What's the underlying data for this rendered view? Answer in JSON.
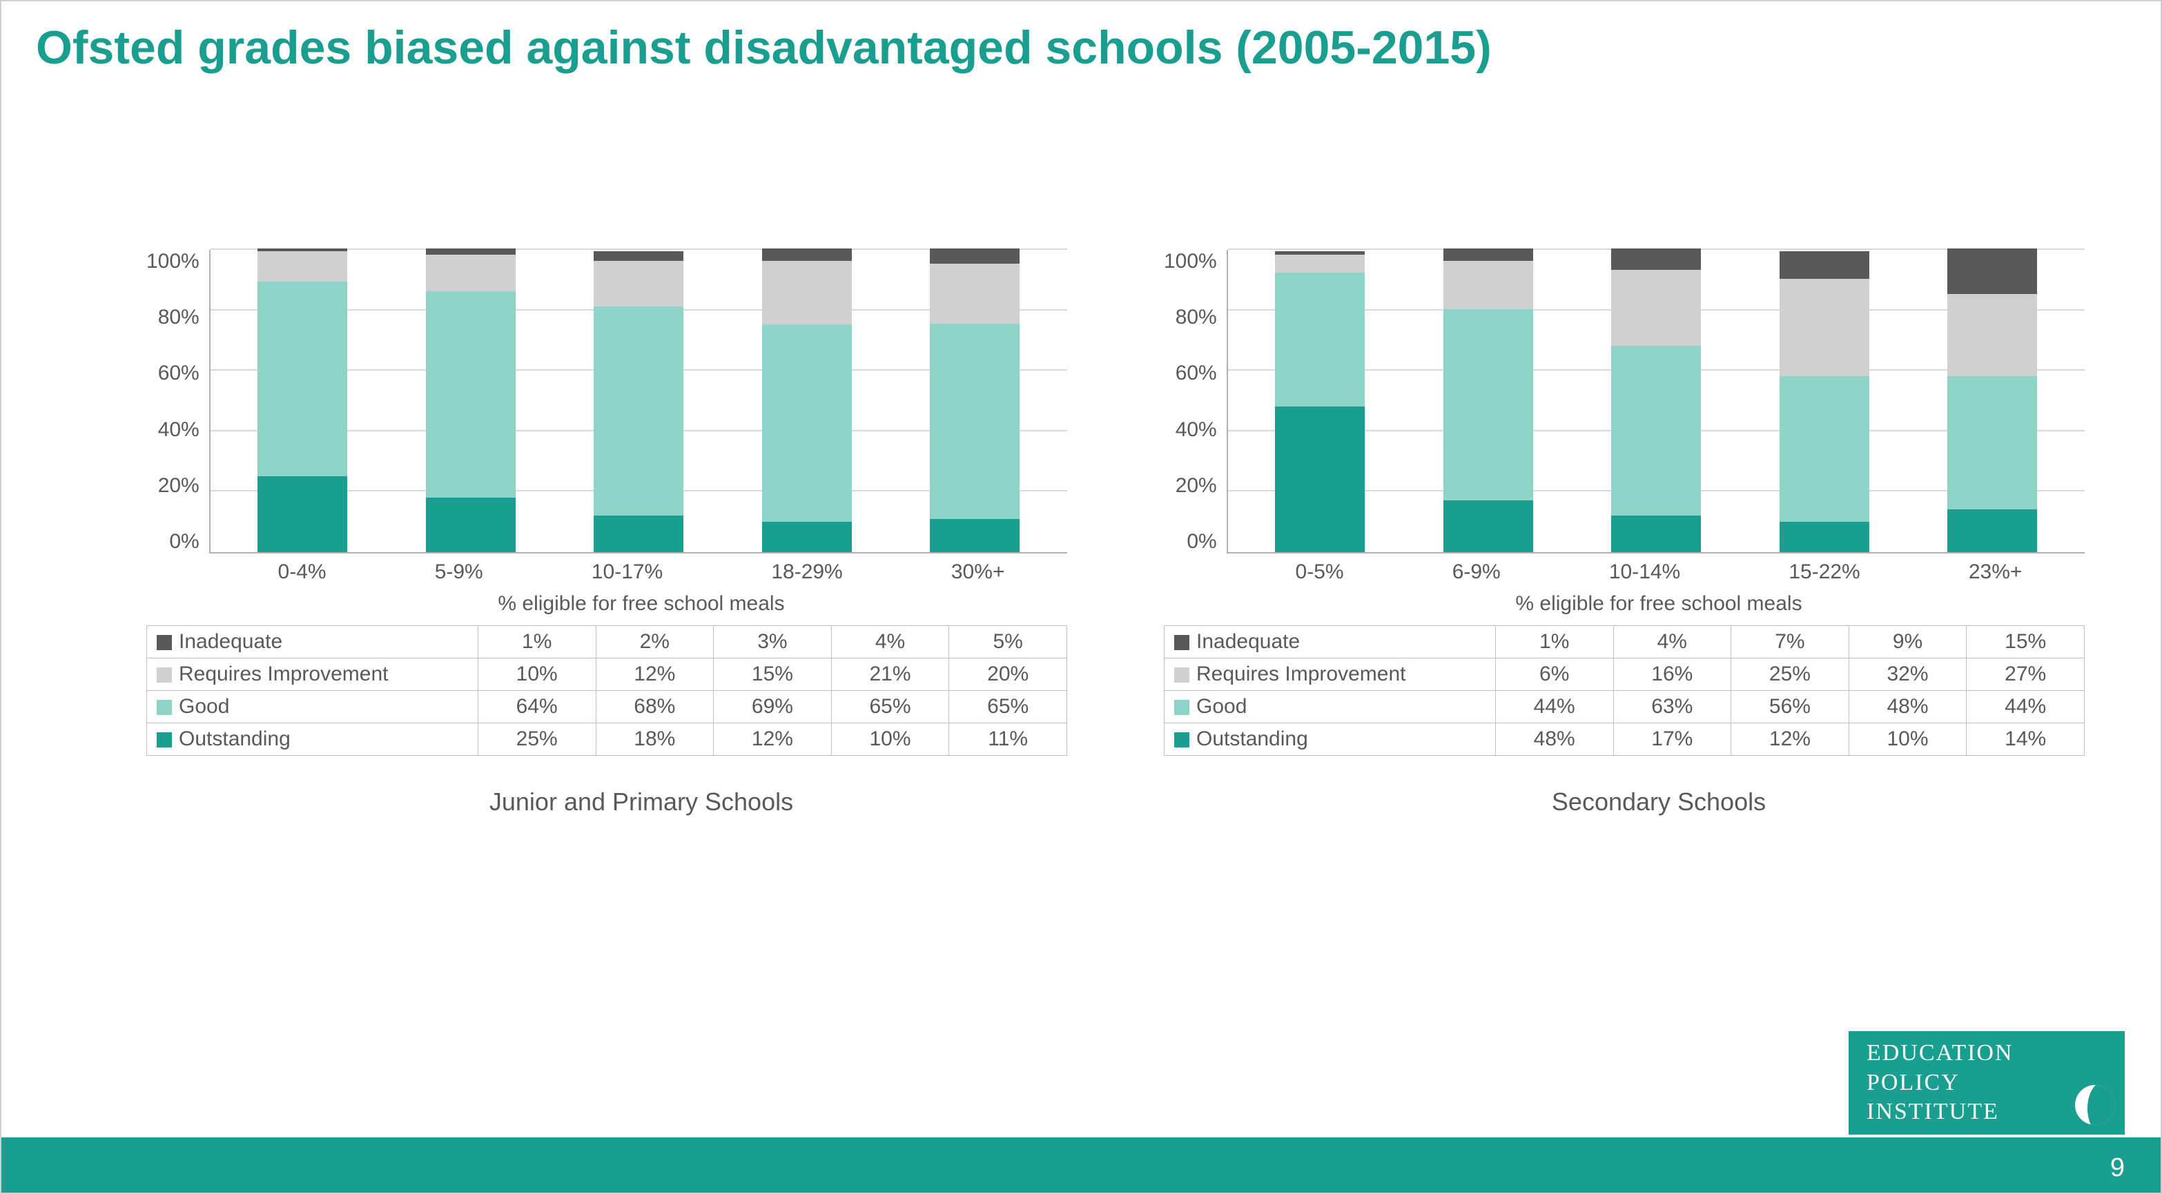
{
  "title": "Ofsted grades biased against disadvantaged schools (2005-2015)",
  "page_number": "9",
  "logo": {
    "line1": "EDUCATION",
    "line2": "POLICY",
    "line3": "INSTITUTE"
  },
  "colors": {
    "accent": "#1a9e8f",
    "grid": "#d9d9d9",
    "axis": "#b0b0b0",
    "text": "#595959",
    "series": {
      "outstanding": "#1a9e8f",
      "good": "#8fd3c9",
      "requires_improvement": "#d0d0d0",
      "inadequate": "#595959"
    }
  },
  "y_axis": {
    "ticks": [
      "0%",
      "20%",
      "40%",
      "60%",
      "80%",
      "100%"
    ],
    "ylim": [
      0,
      100
    ],
    "step": 20
  },
  "series_order": [
    "outstanding",
    "good",
    "requires_improvement",
    "inadequate"
  ],
  "series_labels": {
    "inadequate": "Inadequate",
    "requires_improvement": "Requires Improvement",
    "good": "Good",
    "outstanding": "Outstanding"
  },
  "table_row_order": [
    "inadequate",
    "requires_improvement",
    "good",
    "outstanding"
  ],
  "x_axis_title": "% eligible for free school meals",
  "charts": [
    {
      "caption": "Junior and Primary Schools",
      "categories": [
        "0-4%",
        "5-9%",
        "10-17%",
        "18-29%",
        "30%+"
      ],
      "data": {
        "inadequate": [
          1,
          2,
          3,
          4,
          5
        ],
        "requires_improvement": [
          10,
          12,
          15,
          21,
          20
        ],
        "good": [
          64,
          68,
          69,
          65,
          65
        ],
        "outstanding": [
          25,
          18,
          12,
          10,
          11
        ]
      }
    },
    {
      "caption": "Secondary Schools",
      "categories": [
        "0-5%",
        "6-9%",
        "10-14%",
        "15-22%",
        "23%+"
      ],
      "data": {
        "inadequate": [
          1,
          4,
          7,
          9,
          15
        ],
        "requires_improvement": [
          6,
          16,
          25,
          32,
          27
        ],
        "good": [
          44,
          63,
          56,
          48,
          44
        ],
        "outstanding": [
          48,
          17,
          12,
          10,
          14
        ]
      }
    }
  ]
}
